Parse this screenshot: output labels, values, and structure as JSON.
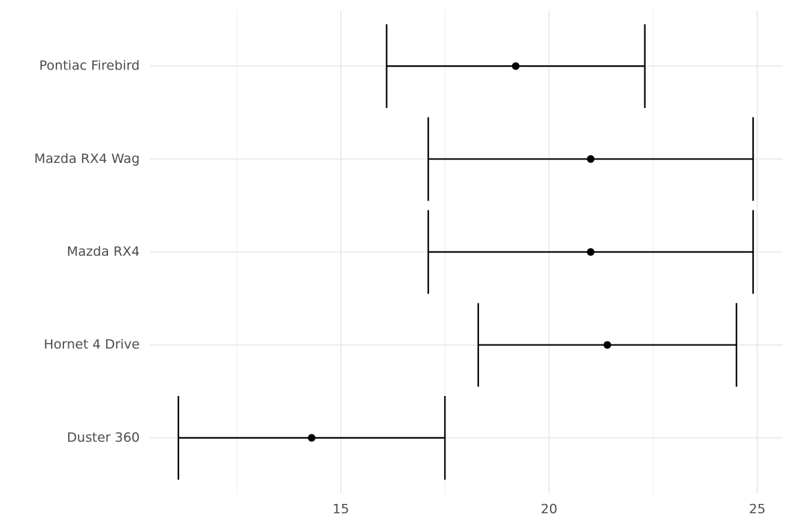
{
  "chart_data": {
    "type": "errorbar",
    "categories": [
      "Duster 360",
      "Hornet 4 Drive",
      "Mazda RX4",
      "Mazda RX4 Wag",
      "Pontiac Firebird"
    ],
    "values": [
      14.3,
      21.4,
      21.0,
      21.0,
      19.2
    ],
    "lower": [
      11.1,
      18.3,
      17.1,
      17.1,
      16.1
    ],
    "upper": [
      17.5,
      24.5,
      24.9,
      24.9,
      22.3
    ],
    "color": "#000000",
    "xlim": [
      10.42,
      25.61
    ],
    "xticks": [
      15,
      20,
      25
    ],
    "xminor_ticks": [
      12.5,
      17.5,
      22.5
    ],
    "grid": true
  }
}
